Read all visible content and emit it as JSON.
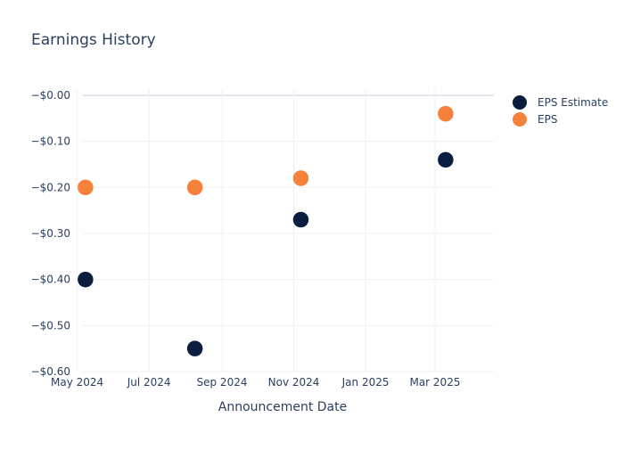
{
  "chart_data": {
    "type": "scatter",
    "title": "Earnings History",
    "xlabel": "Announcement Date",
    "ylabel": "",
    "x_ticks": [
      {
        "date": "2024-05-01",
        "label": "May 2024"
      },
      {
        "date": "2024-07-01",
        "label": "Jul 2024"
      },
      {
        "date": "2024-09-01",
        "label": "Sep 2024"
      },
      {
        "date": "2024-11-01",
        "label": "Nov 2024"
      },
      {
        "date": "2025-01-01",
        "label": "Jan 2025"
      },
      {
        "date": "2025-03-01",
        "label": "Mar 2025"
      }
    ],
    "y_ticks": [
      {
        "value": 0.0,
        "label": "−$0.00"
      },
      {
        "value": -0.1,
        "label": "−$0.10"
      },
      {
        "value": -0.2,
        "label": "−$0.20"
      },
      {
        "value": -0.3,
        "label": "−$0.30"
      },
      {
        "value": -0.4,
        "label": "−$0.40"
      },
      {
        "value": -0.5,
        "label": "−$0.50"
      },
      {
        "value": -0.6,
        "label": "−$0.60"
      }
    ],
    "xlim": [
      "2024-04-26",
      "2025-04-20"
    ],
    "ylim": [
      -0.6,
      0.0
    ],
    "grid": true,
    "legend_position": "top-right",
    "series": [
      {
        "name": "EPS Estimate",
        "color": "#0b1e3f",
        "points": [
          {
            "x": "2024-05-08",
            "y": -0.4
          },
          {
            "x": "2024-08-09",
            "y": -0.55
          },
          {
            "x": "2024-11-07",
            "y": -0.27
          },
          {
            "x": "2025-03-10",
            "y": -0.14
          }
        ]
      },
      {
        "name": "EPS",
        "color": "#f5813a",
        "points": [
          {
            "x": "2024-05-08",
            "y": -0.2
          },
          {
            "x": "2024-08-09",
            "y": -0.2
          },
          {
            "x": "2024-11-07",
            "y": -0.18
          },
          {
            "x": "2025-03-10",
            "y": -0.04
          }
        ]
      }
    ]
  }
}
